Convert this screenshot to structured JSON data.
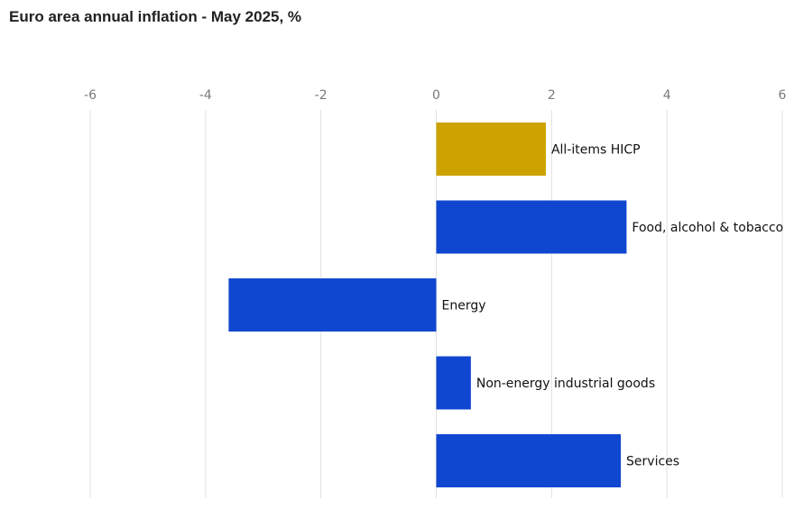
{
  "title": "Euro area annual inflation - May 2025, %",
  "chart_data": {
    "type": "bar",
    "orientation": "horizontal",
    "title": "Euro area annual inflation - May 2025, %",
    "xlabel": "",
    "ylabel": "",
    "xlim": [
      -6,
      6
    ],
    "xticks": [
      -6,
      -4,
      -2,
      0,
      2,
      4,
      6
    ],
    "grid": true,
    "legend": "none",
    "categories": [
      "All-items HICP",
      "Food, alcohol & tobacco",
      "Energy",
      "Non-energy industrial goods",
      "Services"
    ],
    "values": [
      1.9,
      3.3,
      -3.6,
      0.6,
      3.2
    ],
    "colors": [
      "#cca300",
      "#1047d0",
      "#1047d0",
      "#1047d0",
      "#1047d0"
    ]
  }
}
